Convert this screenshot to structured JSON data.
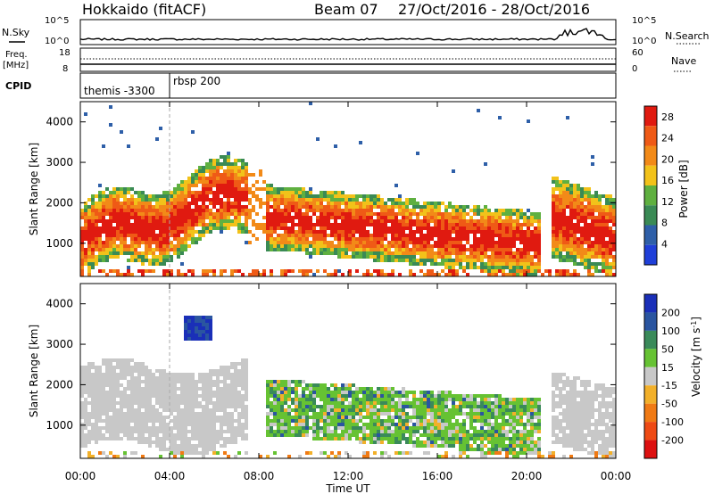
{
  "header": {
    "station": "Hokkaido (fitACF)",
    "beam": "Beam 07",
    "date_range": "27/Oct/2016 - 28/Oct/2016"
  },
  "noise_panel": {
    "left_label": "N.Sky",
    "right_label": "N.Search",
    "tick_top": "10^5",
    "tick_bottom": "10^0"
  },
  "freq_panel": {
    "label_line1": "Freq.",
    "label_line2": "[MHz]",
    "tick_top": "18",
    "tick_bottom": "8",
    "right_label": "Nave",
    "right_tick_top": "60",
    "right_tick_bottom": "0"
  },
  "cpid_panel": {
    "label": "CPID",
    "programs": [
      {
        "name": "themis -3300",
        "start_hour": 0
      },
      {
        "name": "rbsp 200",
        "start_hour": 4.0
      }
    ]
  },
  "chart_data": [
    {
      "type": "heatmap",
      "title": "",
      "xlabel": "",
      "ylabel": "Slant Range [km]",
      "x_ticks": [
        "00:00",
        "04:00",
        "08:00",
        "12:00",
        "16:00",
        "20:00",
        "00:00"
      ],
      "x_range_hours": [
        0,
        24
      ],
      "ylim": [
        180,
        4500
      ],
      "y_ticks": [
        1000,
        2000,
        3000,
        4000
      ],
      "colorbar": {
        "label": "Power [dB]",
        "ticks": [
          4,
          8,
          12,
          16,
          20,
          24,
          28
        ],
        "range": [
          0,
          30
        ],
        "colors": [
          "#1f3fd8",
          "#2e5fa8",
          "#3a8a55",
          "#5fb040",
          "#f2c21a",
          "#f28a18",
          "#ef5a16",
          "#e01a10"
        ]
      },
      "regions": [
        {
          "desc": "ground scatter band",
          "t": [
            0,
            24
          ],
          "range_km": [
            200,
            500
          ],
          "value_db": 22
        },
        {
          "desc": "main band",
          "t": [
            0,
            7.5
          ],
          "range_km": [
            700,
            2400
          ],
          "value_db": 26
        },
        {
          "desc": "descending band",
          "t": [
            8,
            20.5
          ],
          "range_km": [
            600,
            1800
          ],
          "value_db": 24
        },
        {
          "desc": "evening band",
          "t": [
            21,
            24
          ],
          "range_km": [
            900,
            2600
          ],
          "value_db": 26
        }
      ]
    },
    {
      "type": "heatmap",
      "title": "",
      "xlabel": "Time UT",
      "ylabel": "Slant Range [km]",
      "x_ticks": [
        "00:00",
        "04:00",
        "08:00",
        "12:00",
        "16:00",
        "20:00",
        "00:00"
      ],
      "x_range_hours": [
        0,
        24
      ],
      "ylim": [
        180,
        4500
      ],
      "y_ticks": [
        1000,
        2000,
        3000,
        4000
      ],
      "colorbar": {
        "label": "Velocity [m s^-1]",
        "ticks": [
          200,
          100,
          50,
          15,
          -15,
          -50,
          -100,
          -200
        ],
        "range": [
          -250,
          250
        ],
        "colors": [
          "#1a2fb8",
          "#2a55a0",
          "#3a8a5a",
          "#66c233",
          "#c8c8c8",
          "#f2b02a",
          "#f07a14",
          "#ee4a14",
          "#dd1010"
        ]
      },
      "regions": [
        {
          "desc": "ground scatter (grey)",
          "t": [
            0,
            7.5
          ],
          "range_km": [
            500,
            2500
          ],
          "value_ms": 0
        },
        {
          "desc": "ionospheric scatter",
          "t": [
            8,
            20.5
          ],
          "range_km": [
            600,
            2100
          ],
          "value_ms": 40
        },
        {
          "desc": "positive velocity patch",
          "t": [
            4.5,
            5.8
          ],
          "range_km": [
            3200,
            3800
          ],
          "value_ms": 220
        }
      ]
    }
  ]
}
